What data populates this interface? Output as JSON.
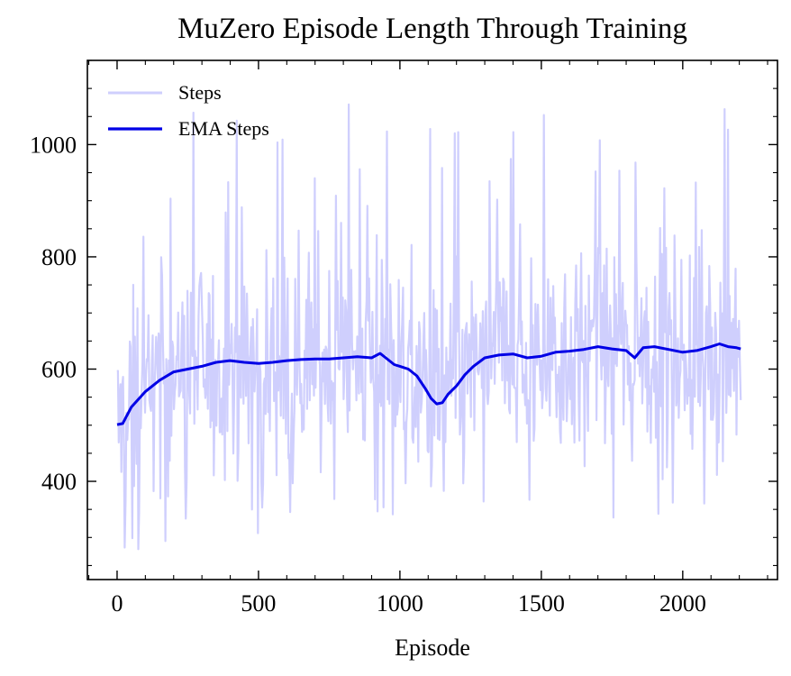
{
  "chart_data": {
    "type": "line",
    "title": "MuZero Episode Length Through Training",
    "xlabel": "Episode",
    "ylabel": "",
    "xlim": [
      -105,
      2335
    ],
    "ylim": [
      225,
      1150
    ],
    "xticks": [
      0,
      500,
      1000,
      1500,
      2000
    ],
    "yticks": [
      400,
      600,
      800,
      1000
    ],
    "legend_position": "top-left",
    "grid": false,
    "series": [
      {
        "name": "Steps",
        "color": "#cfcffd",
        "description": "raw per-episode step counts (noisy, ~300–1100)",
        "x_range": [
          0,
          2205
        ],
        "range_min": 265,
        "range_max": 1110
      },
      {
        "name": "EMA Steps",
        "color": "#0000e6",
        "x": [
          0,
          20,
          50,
          100,
          150,
          200,
          250,
          300,
          350,
          400,
          450,
          500,
          550,
          600,
          650,
          700,
          750,
          800,
          850,
          900,
          930,
          950,
          980,
          1000,
          1030,
          1060,
          1090,
          1110,
          1130,
          1150,
          1170,
          1200,
          1230,
          1260,
          1300,
          1350,
          1400,
          1450,
          1500,
          1550,
          1600,
          1650,
          1700,
          1750,
          1800,
          1830,
          1860,
          1900,
          1950,
          2000,
          2050,
          2100,
          2130,
          2160,
          2190,
          2205
        ],
        "values": [
          501,
          503,
          532,
          560,
          580,
          595,
          600,
          605,
          612,
          615,
          612,
          610,
          612,
          615,
          617,
          618,
          618,
          620,
          622,
          620,
          628,
          620,
          608,
          605,
          600,
          588,
          565,
          548,
          538,
          540,
          555,
          570,
          590,
          605,
          620,
          625,
          627,
          620,
          623,
          630,
          632,
          635,
          640,
          636,
          633,
          620,
          638,
          640,
          635,
          630,
          633,
          640,
          645,
          640,
          638,
          636
        ]
      }
    ]
  }
}
